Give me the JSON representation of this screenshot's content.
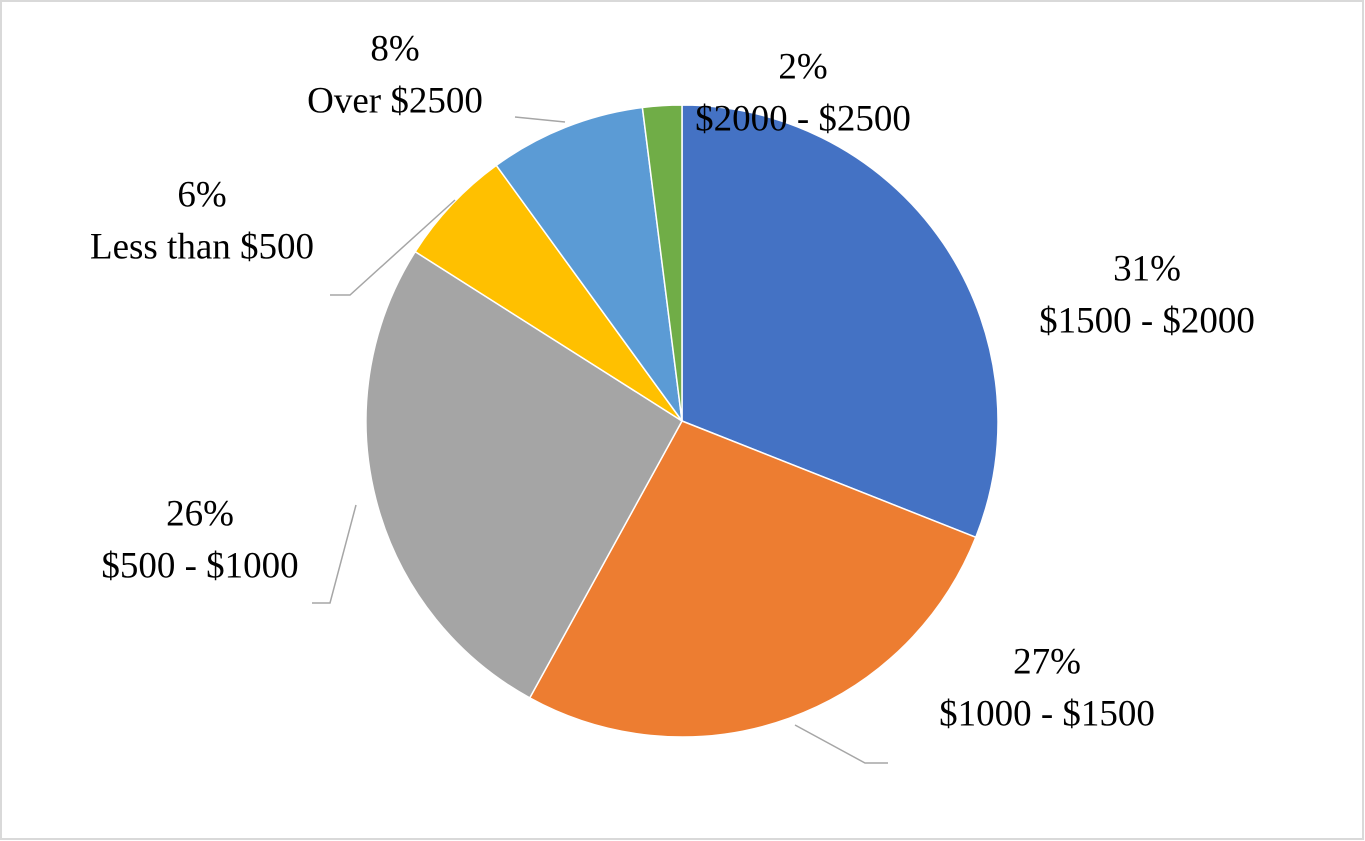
{
  "chart_data": {
    "type": "pie",
    "categories": [
      "$1500 - $2000",
      "$1000 - $1500",
      "$500 - $1000",
      "Less than $500",
      "Over $2500",
      "$2000 - $2500"
    ],
    "values": [
      31,
      27,
      26,
      6,
      8,
      2
    ],
    "value_labels": [
      "31%",
      "27%",
      "26%",
      "6%",
      "8%",
      "2%"
    ],
    "colors": [
      "#4472c4",
      "#ed7d31",
      "#a5a5a5",
      "#ffc000",
      "#5b9bd5",
      "#70ad47"
    ]
  }
}
